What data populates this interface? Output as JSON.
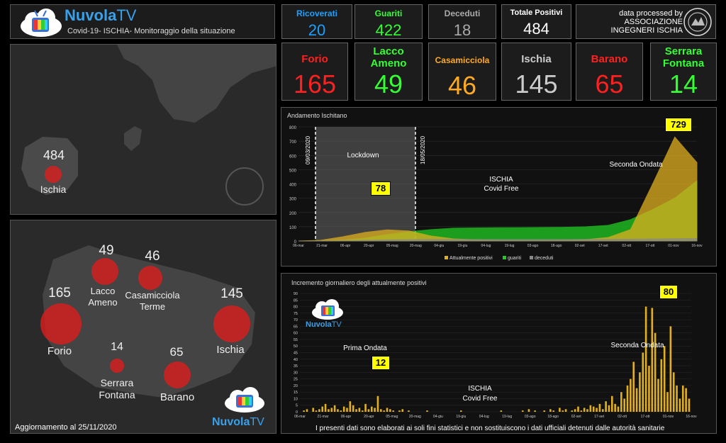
{
  "header": {
    "brand_a": "Nuvola",
    "brand_b": "TV",
    "subtitle": "Covid-19-  ISCHIA- Monitoraggio della situazione",
    "credit_1": "data processed by",
    "credit_2": "ASSOCIAZIONE",
    "credit_3": "INGEGNERI ISCHIA"
  },
  "stats": [
    {
      "label": "Ricoverati",
      "value": "20",
      "color": "#1ea0ff"
    },
    {
      "label": "Guariti",
      "value": "422",
      "color": "#33ff33"
    },
    {
      "label": "Deceduti",
      "value": "18",
      "color": "#aaaaaa"
    },
    {
      "label": "Totale Positivi",
      "value": "484",
      "color": "#ffffff"
    }
  ],
  "towns": [
    {
      "label1": "Forio",
      "label2": "",
      "value": "165",
      "color": "#ff2020"
    },
    {
      "label1": "Lacco",
      "label2": "Ameno",
      "value": "49",
      "color": "#33ff33"
    },
    {
      "label1": "Casamicciola",
      "label2": "",
      "value": "46",
      "color": "#ffaa22"
    },
    {
      "label1": "Ischia",
      "label2": "",
      "value": "145",
      "color": "#cccccc"
    },
    {
      "label1": "Barano",
      "label2": "",
      "value": "65",
      "color": "#ff2020"
    },
    {
      "label1": "Serrara",
      "label2": "Fontana",
      "value": "14",
      "color": "#33ff33"
    }
  ],
  "overview_map": {
    "total": "484",
    "name": "Ischia"
  },
  "detail_map": {
    "places": [
      {
        "count": "165",
        "name1": "Forio",
        "name2": ""
      },
      {
        "count": "49",
        "name1": "Lacco",
        "name2": "Ameno"
      },
      {
        "count": "46",
        "name1": "Casamicciola",
        "name2": "Terme"
      },
      {
        "count": "145",
        "name1": "Ischia",
        "name2": ""
      },
      {
        "count": "14",
        "name1": "Serrara",
        "name2": "Fontana"
      },
      {
        "count": "65",
        "name1": "Barano",
        "name2": ""
      }
    ],
    "updated": "Aggiornamento al 25/11/2020"
  },
  "chart1": {
    "title": "Andamento Ischitano",
    "date1": "09/03/2020",
    "date2": "18/05/2020",
    "lockdown": "Lockdown",
    "peak1": "78",
    "peak2": "729",
    "free1": "ISCHIA",
    "free2": "Covid Free",
    "second": "Seconda Ondata",
    "legend": [
      "Attualmente positivi",
      "guariti",
      "deceduti"
    ]
  },
  "chart2": {
    "title": "Incremento giornaliero degli attualmente positivi",
    "first": "Prima Ondata",
    "peak1": "12",
    "peak2": "80",
    "free1": "ISCHIA",
    "free2": "Covid Free",
    "second": "Seconda Ondata"
  },
  "footer": "I presenti dati sono elaborati ai soli fini statistici e non sostituiscono i dati ufficiali detenuti dalle autorità sanitarie",
  "chart_data": [
    {
      "type": "area",
      "title": "Andamento Ischitano",
      "ylim": [
        0,
        800
      ],
      "yticks": [
        0,
        100,
        200,
        300,
        400,
        500,
        600,
        700,
        800
      ],
      "xticks": [
        "06-mar",
        "21-mar",
        "06-apr",
        "20-apr",
        "05-mag",
        "20-mag",
        "04-giu",
        "19-giu",
        "04-lug",
        "19-lug",
        "03-ago",
        "18-ago",
        "02-set",
        "17-set",
        "02-ott",
        "17-ott",
        "01-nov",
        "16-nov"
      ],
      "series": [
        {
          "name": "Attualmente positivi",
          "color": "#e0b020",
          "values": [
            0,
            5,
            30,
            60,
            78,
            70,
            35,
            15,
            8,
            4,
            3,
            3,
            5,
            10,
            25,
            80,
            400,
            729,
            550
          ]
        },
        {
          "name": "guariti",
          "color": "#22cc22",
          "values": [
            0,
            0,
            5,
            20,
            45,
            65,
            80,
            90,
            92,
            93,
            94,
            95,
            96,
            100,
            110,
            150,
            220,
            300,
            422
          ]
        },
        {
          "name": "deceduti",
          "color": "#888888",
          "values": [
            0,
            0,
            2,
            5,
            8,
            10,
            11,
            11,
            11,
            11,
            11,
            11,
            11,
            12,
            12,
            13,
            15,
            17,
            18
          ]
        }
      ],
      "legend": "bottom"
    },
    {
      "type": "bar",
      "title": "Incremento giornaliero degli attualmente positivi",
      "ylim": [
        0,
        90
      ],
      "yticks": [
        0,
        5,
        10,
        15,
        20,
        25,
        30,
        35,
        40,
        45,
        50,
        55,
        60,
        65,
        70,
        75,
        80,
        85,
        90
      ],
      "xticks": [
        "06-mar",
        "21-mar",
        "06-apr",
        "20-apr",
        "05-mag",
        "20-mag",
        "04-giu",
        "19-giu",
        "04-lug",
        "19-lug",
        "03-ago",
        "18-ago",
        "02-set",
        "17-set",
        "02-ott",
        "17-ott",
        "01-nov",
        "16-nov"
      ],
      "values": [
        0,
        1,
        2,
        0,
        3,
        1,
        2,
        4,
        6,
        2,
        3,
        5,
        2,
        1,
        4,
        3,
        8,
        5,
        2,
        3,
        1,
        6,
        2,
        4,
        3,
        12,
        2,
        1,
        3,
        2,
        1,
        0,
        1,
        2,
        0,
        1,
        0,
        0,
        0,
        0,
        0,
        1,
        0,
        0,
        0,
        0,
        0,
        0,
        0,
        0,
        0,
        0,
        1,
        0,
        0,
        0,
        0,
        0,
        0,
        0,
        0,
        0,
        0,
        0,
        0,
        1,
        0,
        0,
        0,
        0,
        0,
        0,
        1,
        0,
        2,
        0,
        1,
        0,
        0,
        1,
        0,
        2,
        1,
        0,
        3,
        1,
        2,
        0,
        1,
        2,
        4,
        1,
        3,
        2,
        5,
        4,
        3,
        6,
        2,
        8,
        5,
        12,
        6,
        4,
        15,
        10,
        20,
        25,
        38,
        18,
        30,
        45,
        80,
        35,
        79,
        60,
        25,
        40,
        50,
        15,
        65,
        30,
        20,
        10,
        20,
        18,
        10
      ]
    }
  ]
}
